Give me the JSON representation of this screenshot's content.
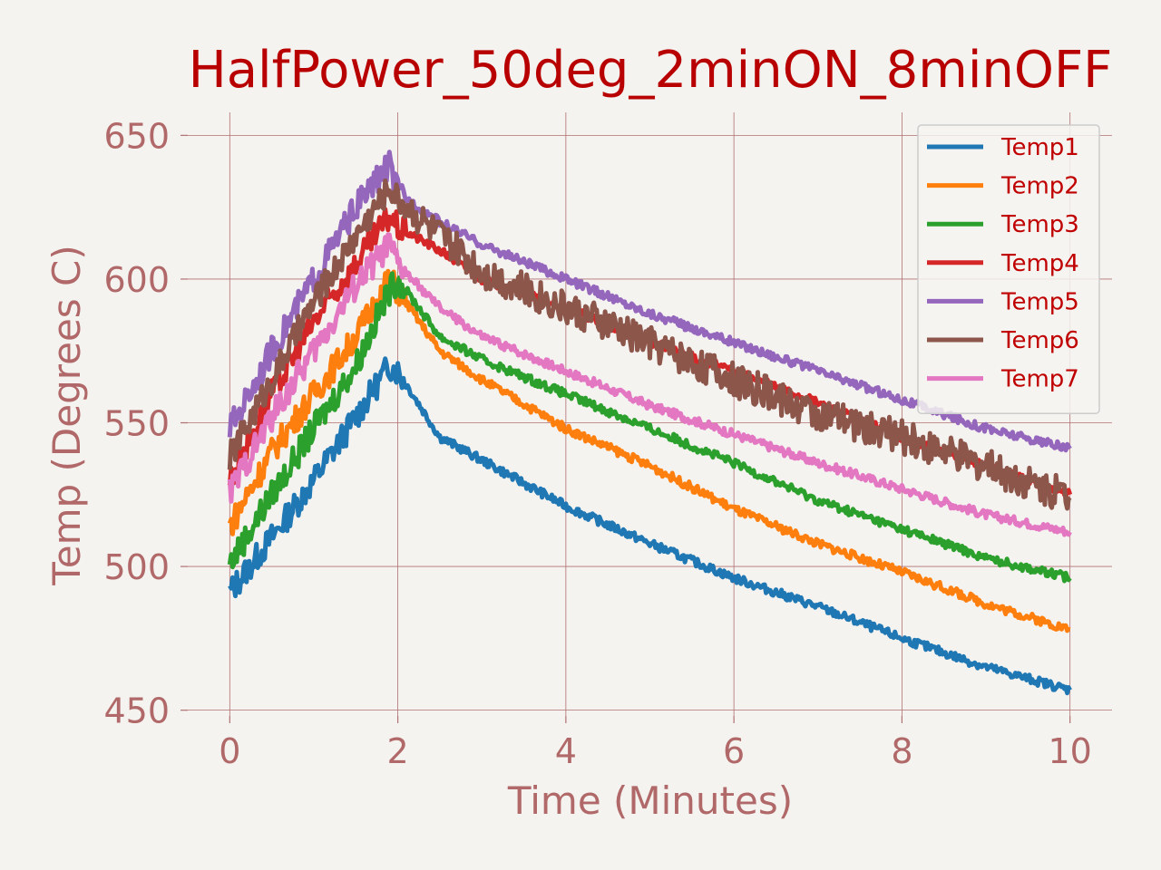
{
  "chart_data": {
    "type": "line",
    "title": "HalfPower_50deg_2minON_8minOFF",
    "xlabel": "Time (Minutes)",
    "ylabel": "Temp (Degrees C)",
    "xlim": [
      -0.5,
      10.5
    ],
    "ylim": [
      448,
      658
    ],
    "x_ticks": [
      0,
      2,
      4,
      6,
      8,
      10
    ],
    "y_ticks": [
      450,
      500,
      550,
      600,
      650
    ],
    "grid": true,
    "legend_position": "top-right",
    "series": [
      {
        "name": "Temp1",
        "color": "#1f77b4",
        "x": [
          0,
          0.5,
          1,
          1.5,
          1.9,
          2,
          2.5,
          3,
          4,
          5,
          6,
          7,
          8,
          9,
          10
        ],
        "y": [
          491,
          510,
          530,
          552,
          570,
          568,
          545,
          537,
          521,
          508,
          496,
          486,
          475,
          465,
          457
        ]
      },
      {
        "name": "Temp2",
        "color": "#ff7f0e",
        "x": [
          0,
          0.5,
          1,
          1.5,
          1.9,
          2,
          2.5,
          3,
          4,
          5,
          6,
          7,
          8,
          9,
          10
        ],
        "y": [
          514,
          540,
          560,
          580,
          600,
          596,
          575,
          565,
          548,
          535,
          520,
          508,
          498,
          487,
          478
        ]
      },
      {
        "name": "Temp3",
        "color": "#2ca02c",
        "x": [
          0,
          0.5,
          1,
          1.5,
          1.9,
          2,
          2.5,
          3,
          4,
          5,
          6,
          7,
          8,
          9,
          10
        ],
        "y": [
          501,
          525,
          548,
          570,
          596,
          600,
          580,
          572,
          560,
          548,
          536,
          523,
          513,
          503,
          496
        ]
      },
      {
        "name": "Temp4",
        "color": "#d62728",
        "x": [
          0,
          0.5,
          1,
          1.5,
          1.9,
          2,
          2.5,
          3,
          4,
          5,
          6,
          7,
          8,
          9,
          10
        ],
        "y": [
          530,
          560,
          585,
          605,
          622,
          618,
          610,
          600,
          590,
          578,
          568,
          557,
          545,
          535,
          525
        ]
      },
      {
        "name": "Temp5",
        "color": "#9467bd",
        "x": [
          0,
          0.5,
          1,
          1.5,
          1.9,
          2,
          2.5,
          3,
          4,
          5,
          6,
          7,
          8,
          9,
          10
        ],
        "y": [
          548,
          575,
          600,
          625,
          640,
          630,
          620,
          612,
          600,
          588,
          578,
          568,
          558,
          548,
          541
        ]
      },
      {
        "name": "Temp6",
        "color": "#8c564b",
        "x": [
          0,
          0.5,
          1,
          1.5,
          1.9,
          2,
          2.5,
          3,
          4,
          5,
          6,
          7,
          8,
          9,
          10
        ],
        "y": [
          538,
          565,
          592,
          615,
          632,
          628,
          615,
          603,
          590,
          578,
          565,
          553,
          545,
          535,
          524
        ]
      },
      {
        "name": "Temp7",
        "color": "#e377c2",
        "x": [
          0,
          0.5,
          1,
          1.5,
          1.9,
          2,
          2.5,
          3,
          4,
          5,
          6,
          7,
          8,
          9,
          10
        ],
        "y": [
          526,
          552,
          575,
          598,
          612,
          605,
          590,
          580,
          568,
          556,
          546,
          536,
          527,
          518,
          512
        ]
      }
    ]
  }
}
